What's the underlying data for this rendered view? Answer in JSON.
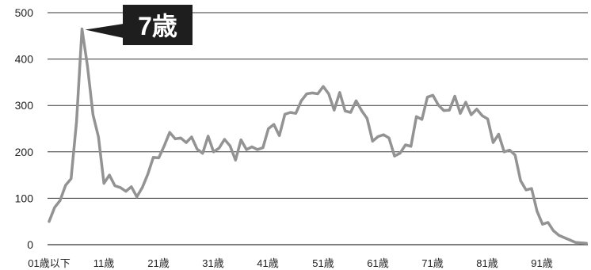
{
  "chart_data": {
    "type": "line",
    "title": "",
    "xlabel": "",
    "ylabel": "",
    "ylim": [
      0,
      500
    ],
    "y_ticks": [
      0,
      100,
      200,
      300,
      400,
      500
    ],
    "grid": "horizontal",
    "x_tick_labels": [
      "01歳以下",
      "11歳",
      "21歳",
      "31歳",
      "41歳",
      "51歳",
      "61歳",
      "71歳",
      "81歳",
      "91歳"
    ],
    "x": [
      0,
      1,
      2,
      3,
      4,
      5,
      6,
      7,
      8,
      9,
      10,
      11,
      12,
      13,
      14,
      15,
      16,
      17,
      18,
      19,
      20,
      21,
      22,
      23,
      24,
      25,
      26,
      27,
      28,
      29,
      30,
      31,
      32,
      33,
      34,
      35,
      36,
      37,
      38,
      39,
      40,
      41,
      42,
      43,
      44,
      45,
      46,
      47,
      48,
      49,
      50,
      51,
      52,
      53,
      54,
      55,
      56,
      57,
      58,
      59,
      60,
      61,
      62,
      63,
      64,
      65,
      66,
      67,
      68,
      69,
      70,
      71,
      72,
      73,
      74,
      75,
      76,
      77,
      78,
      79,
      80,
      81,
      82,
      83,
      84,
      85,
      86,
      87,
      88,
      89,
      90,
      91,
      92,
      93,
      94,
      95,
      96,
      97,
      98
    ],
    "series": [
      {
        "color": "#939393",
        "values": [
          50,
          80,
          95,
          128,
          142,
          265,
          465,
          385,
          280,
          232,
          132,
          150,
          127,
          123,
          115,
          125,
          103,
          123,
          152,
          188,
          187,
          213,
          242,
          228,
          230,
          220,
          232,
          206,
          197,
          234,
          200,
          208,
          227,
          213,
          182,
          226,
          205,
          211,
          205,
          209,
          250,
          259,
          235,
          281,
          285,
          283,
          310,
          325,
          327,
          325,
          341,
          325,
          290,
          328,
          288,
          285,
          310,
          289,
          272,
          223,
          233,
          237,
          230,
          191,
          197,
          215,
          212,
          276,
          270,
          318,
          322,
          301,
          289,
          290,
          320,
          283,
          307,
          280,
          292,
          278,
          271,
          220,
          238,
          200,
          204,
          193,
          138,
          118,
          121,
          72,
          44,
          48,
          30,
          20,
          15,
          10,
          5,
          4,
          3
        ]
      }
    ],
    "annotation": {
      "text": "7歳",
      "x": 6,
      "y": 465
    }
  }
}
